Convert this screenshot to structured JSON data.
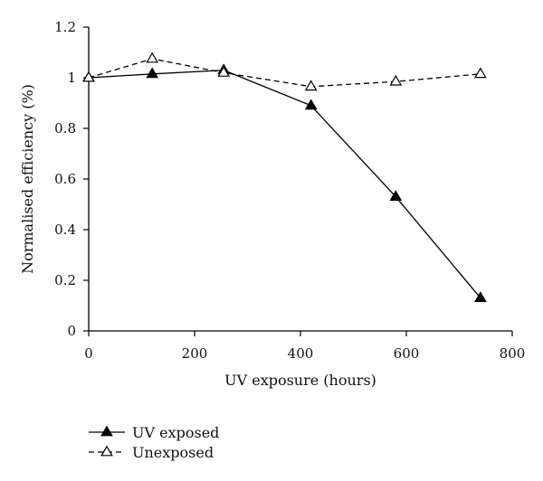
{
  "chart_data": {
    "type": "line",
    "title": "",
    "xlabel": "UV exposure (hours)",
    "ylabel": "Normalised efficiency (%)",
    "xlim": [
      0,
      800
    ],
    "ylim": [
      0,
      1.2
    ],
    "x_ticks": [
      "0",
      "200",
      "400",
      "600",
      "800"
    ],
    "y_ticks": [
      "0",
      "0.2",
      "0.4",
      "0.6",
      "0.8",
      "1",
      "1.2"
    ],
    "grid": false,
    "legend_position": "bottom-left",
    "series": [
      {
        "name": "UV exposed",
        "marker": "filled-triangle",
        "line_style": "solid",
        "color": "#000000",
        "x": [
          0,
          120,
          255,
          420,
          580,
          740
        ],
        "y": [
          1.0,
          1.015,
          1.03,
          0.89,
          0.53,
          0.13
        ]
      },
      {
        "name": "Unexposed",
        "marker": "open-triangle",
        "line_style": "dashed",
        "color": "#000000",
        "x": [
          0,
          120,
          255,
          420,
          580,
          740
        ],
        "y": [
          1.0,
          1.075,
          1.02,
          0.965,
          0.985,
          1.015
        ]
      }
    ]
  }
}
